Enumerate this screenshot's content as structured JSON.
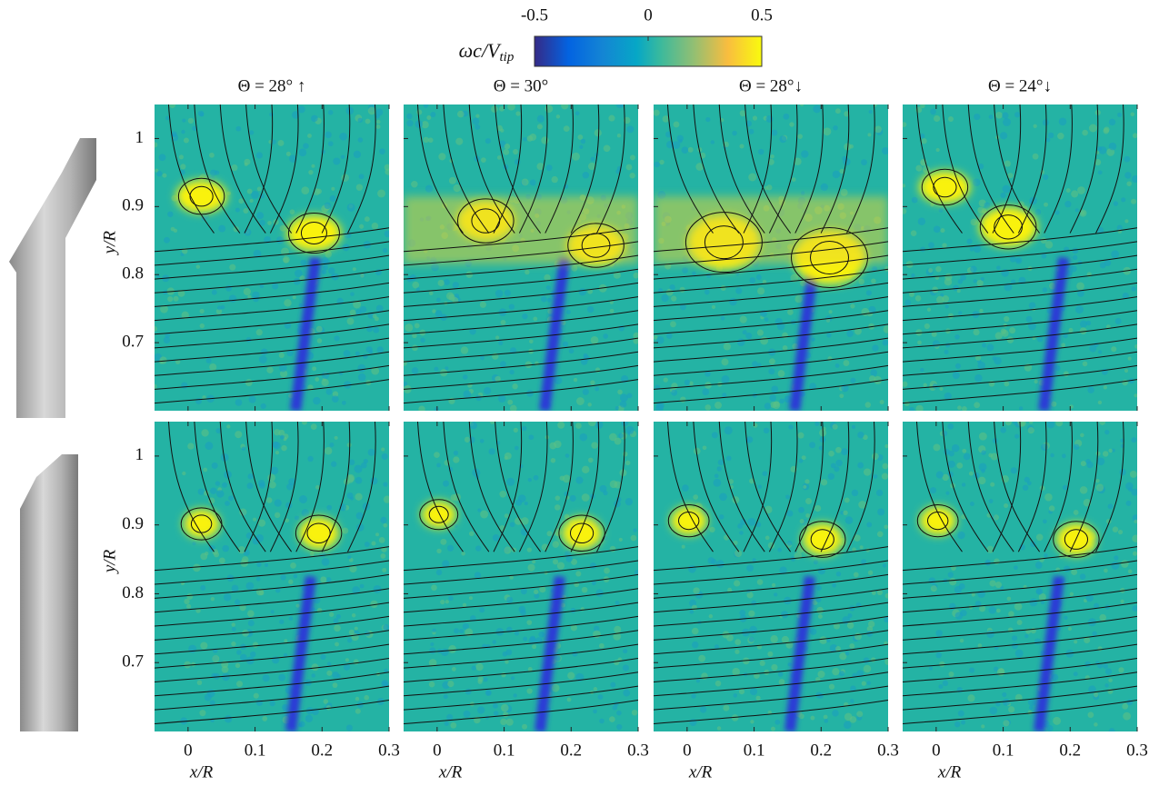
{
  "colorbar": {
    "label": "ωc/V",
    "label_sub": "tip",
    "lim": [
      -0.5,
      0.5
    ],
    "ticks": [
      -0.5,
      0,
      0.5
    ]
  },
  "columns": [
    "Θ = 28° ↑",
    "Θ = 30°",
    "Θ = 28°↓",
    "Θ = 24°↓"
  ],
  "x_axis": {
    "label": "x/R",
    "lim": [
      -0.05,
      0.3
    ],
    "ticks": [
      0,
      0.1,
      0.2,
      0.3
    ]
  },
  "y_axis": {
    "label": "y/R",
    "lim": [
      0.6,
      1.05
    ],
    "ticks": [
      1,
      0.9,
      0.8,
      0.7
    ]
  }
}
